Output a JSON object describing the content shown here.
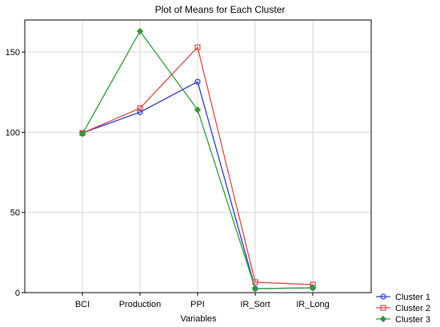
{
  "chart_data": {
    "type": "line",
    "title": "Plot of Means for Each Cluster",
    "xlabel": "Variables",
    "ylabel": "",
    "categories": [
      "BCI",
      "Production",
      "PPI",
      "IR_Sort",
      "IR_Long"
    ],
    "yticks": [
      0,
      50,
      100,
      150
    ],
    "ylim": [
      0,
      170
    ],
    "grid": true,
    "legend": "bottom-right",
    "series": [
      {
        "name": "Cluster  1",
        "values": [
          99.5,
          112.5,
          131.5,
          2.5,
          3.0
        ],
        "color": "#2b35c9",
        "marker": "circle"
      },
      {
        "name": "Cluster  2",
        "values": [
          99.5,
          115.0,
          153.0,
          6.5,
          5.0
        ],
        "color": "#d9474a",
        "marker": "square"
      },
      {
        "name": "Cluster  3",
        "values": [
          99.0,
          163.0,
          114.0,
          2.5,
          3.0
        ],
        "color": "#2e9a37",
        "marker": "diamond"
      }
    ]
  }
}
